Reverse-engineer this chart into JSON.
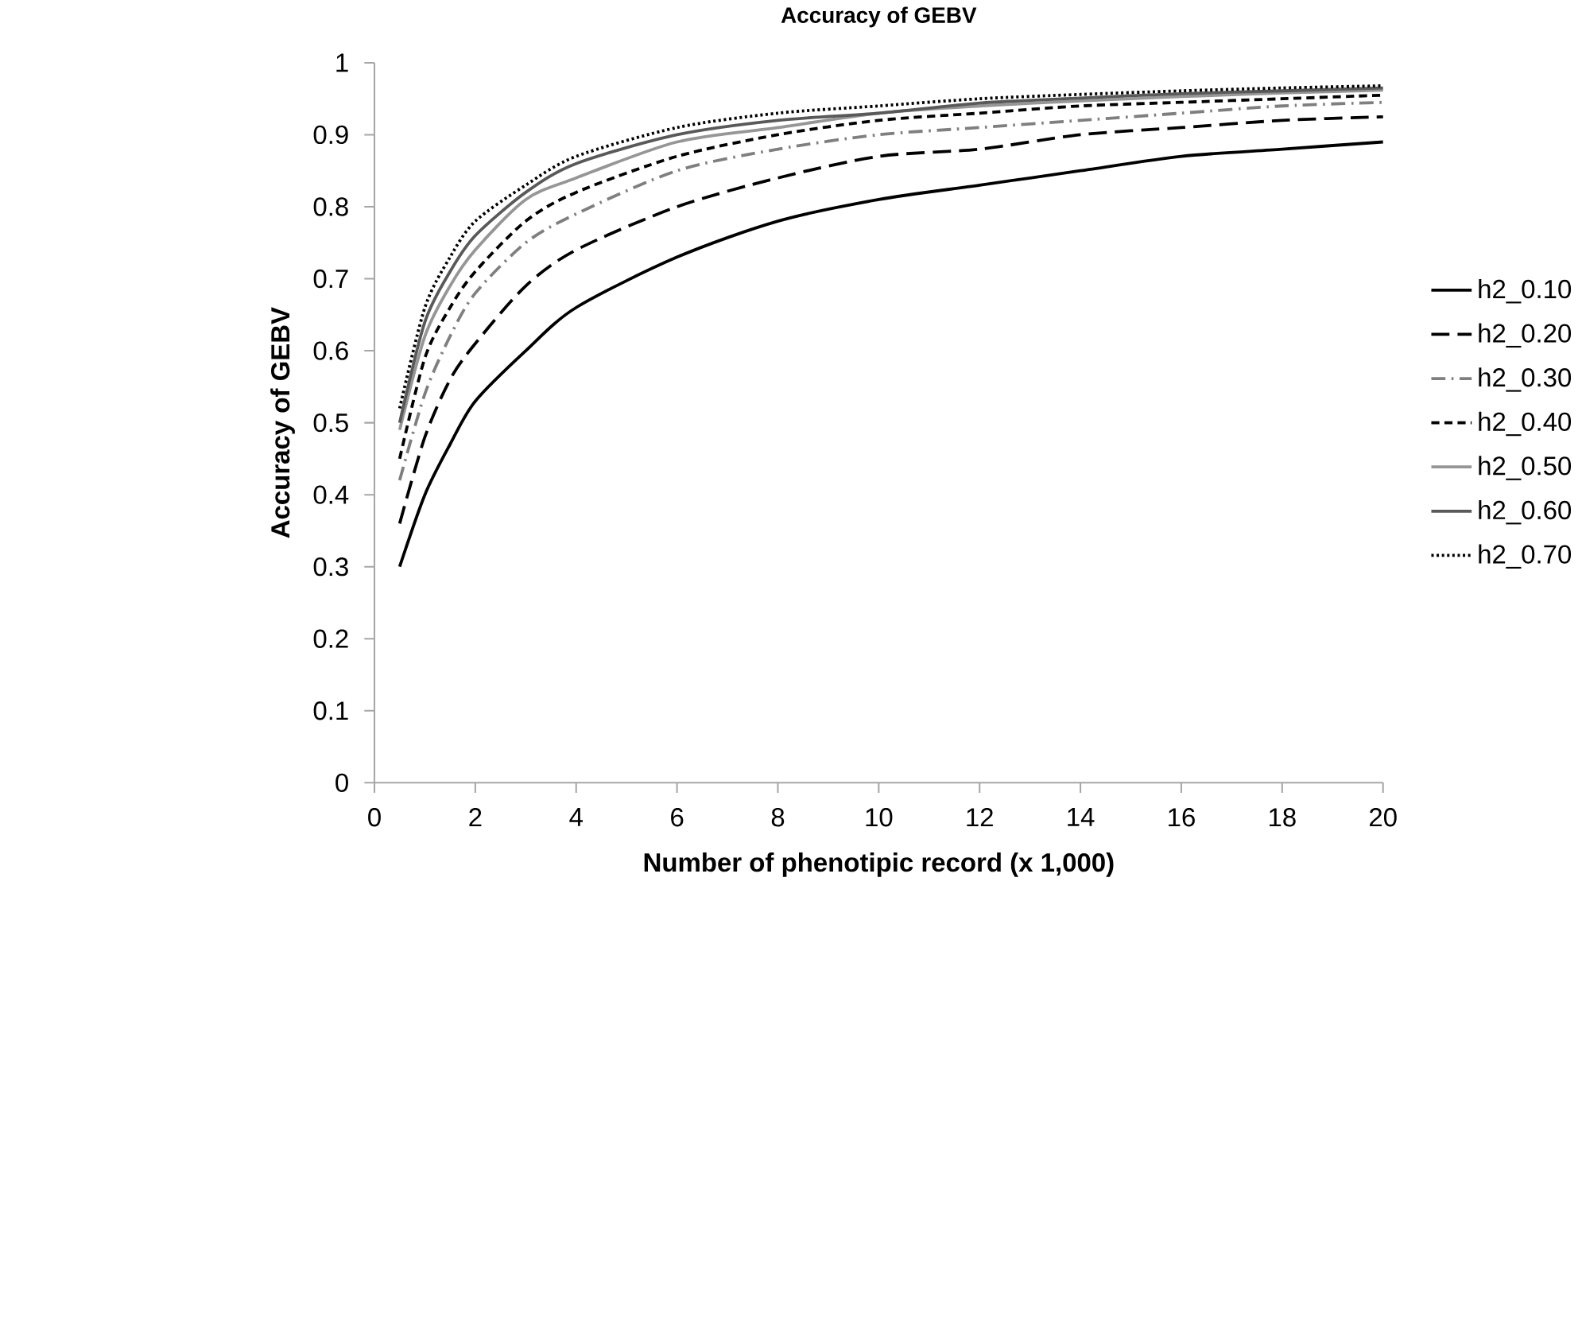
{
  "chart_data": {
    "type": "line",
    "title": "Accuracy of GEBV",
    "xlabel": "Number of phenotipic record (x 1,000)",
    "ylabel": "Accuracy of GEBV",
    "x": [
      0.5,
      1,
      1.5,
      2,
      3,
      4,
      6,
      8,
      10,
      12,
      14,
      16,
      18,
      20
    ],
    "series": [
      {
        "name": "h2_0.10",
        "color": "#000000",
        "line_style": "solid",
        "values": [
          0.3,
          0.4,
          0.47,
          0.53,
          0.6,
          0.66,
          0.73,
          0.78,
          0.81,
          0.83,
          0.85,
          0.87,
          0.88,
          0.89
        ]
      },
      {
        "name": "h2_0.20",
        "color": "#000000",
        "line_style": "longdash",
        "values": [
          0.36,
          0.48,
          0.56,
          0.61,
          0.69,
          0.74,
          0.8,
          0.84,
          0.87,
          0.88,
          0.9,
          0.91,
          0.92,
          0.925
        ]
      },
      {
        "name": "h2_0.30",
        "color": "#7f7f7f",
        "line_style": "dashdot",
        "values": [
          0.42,
          0.54,
          0.62,
          0.68,
          0.75,
          0.79,
          0.85,
          0.88,
          0.9,
          0.91,
          0.92,
          0.93,
          0.94,
          0.945
        ]
      },
      {
        "name": "h2_0.40",
        "color": "#000000",
        "line_style": "dashed",
        "values": [
          0.45,
          0.59,
          0.66,
          0.71,
          0.78,
          0.82,
          0.87,
          0.9,
          0.92,
          0.93,
          0.94,
          0.945,
          0.95,
          0.955
        ]
      },
      {
        "name": "h2_0.50",
        "color": "#969696",
        "line_style": "solid",
        "values": [
          0.49,
          0.62,
          0.69,
          0.74,
          0.81,
          0.84,
          0.89,
          0.91,
          0.93,
          0.94,
          0.947,
          0.953,
          0.958,
          0.962
        ]
      },
      {
        "name": "h2_0.60",
        "color": "#595959",
        "line_style": "solid",
        "values": [
          0.5,
          0.64,
          0.71,
          0.76,
          0.82,
          0.86,
          0.9,
          0.92,
          0.93,
          0.944,
          0.951,
          0.957,
          0.961,
          0.965
        ]
      },
      {
        "name": "h2_0.70",
        "color": "#000000",
        "line_style": "dotted",
        "values": [
          0.52,
          0.66,
          0.73,
          0.78,
          0.83,
          0.87,
          0.91,
          0.93,
          0.94,
          0.95,
          0.956,
          0.961,
          0.965,
          0.968
        ]
      }
    ],
    "xlim": [
      0,
      20
    ],
    "xticks": [
      0,
      2,
      4,
      6,
      8,
      10,
      12,
      14,
      16,
      18,
      20
    ],
    "ylim": [
      0,
      1
    ],
    "yticks": [
      0,
      0.1,
      0.2,
      0.3,
      0.4,
      0.5,
      0.6,
      0.7,
      0.8,
      0.9,
      1
    ],
    "grid": false,
    "legend": "right",
    "marker": "none"
  }
}
